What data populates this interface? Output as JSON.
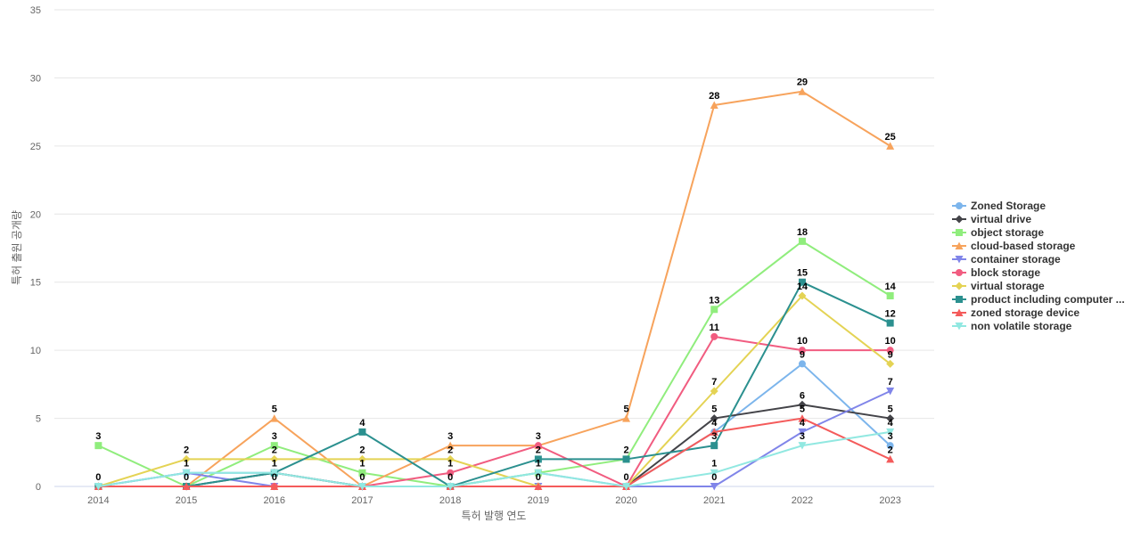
{
  "chart_data": {
    "type": "line",
    "title": "",
    "xlabel": "특허 발행 연도",
    "ylabel": "특허 출원 공개량",
    "ylim": [
      0,
      35
    ],
    "yticks": [
      0,
      5,
      10,
      15,
      20,
      25,
      30,
      35
    ],
    "grid": true,
    "legend_position": "right",
    "categories": [
      "2014",
      "2015",
      "2016",
      "2017",
      "2018",
      "2019",
      "2020",
      "2021",
      "2022",
      "2023"
    ],
    "series": [
      {
        "name": "Zoned Storage",
        "legend_label": "Zoned Storage",
        "color": "#7cb5ec",
        "marker": "circle",
        "values": [
          0,
          1,
          1,
          0,
          0,
          1,
          0,
          4,
          9,
          3
        ]
      },
      {
        "name": "virtual drive",
        "legend_label": "virtual drive",
        "color": "#434348",
        "marker": "diamond",
        "values": [
          0,
          0,
          1,
          0,
          0,
          0,
          0,
          5,
          6,
          5
        ]
      },
      {
        "name": "object storage",
        "legend_label": "object storage",
        "color": "#90ed7d",
        "marker": "square",
        "values": [
          3,
          0,
          3,
          1,
          0,
          1,
          2,
          13,
          18,
          14
        ]
      },
      {
        "name": "cloud-based storage",
        "legend_label": "cloud-based storage",
        "color": "#f7a35c",
        "marker": "triangle",
        "values": [
          0,
          0,
          5,
          0,
          3,
          3,
          5,
          28,
          29,
          25
        ]
      },
      {
        "name": "container storage",
        "legend_label": "container storage",
        "color": "#8085e9",
        "marker": "triangle-down",
        "values": [
          0,
          1,
          0,
          0,
          0,
          0,
          0,
          0,
          4,
          7
        ]
      },
      {
        "name": "block storage",
        "legend_label": "block storage",
        "color": "#f15c80",
        "marker": "circle",
        "values": [
          0,
          0,
          0,
          0,
          1,
          3,
          0,
          11,
          10,
          10
        ]
      },
      {
        "name": "virtual storage",
        "legend_label": "virtual storage",
        "color": "#e4d354",
        "marker": "diamond",
        "values": [
          0,
          2,
          2,
          2,
          2,
          0,
          0,
          7,
          14,
          9
        ]
      },
      {
        "name": "product including computer readable storage medium",
        "legend_label": "product including computer ...",
        "color": "#2b908f",
        "marker": "square",
        "values": [
          0,
          0,
          1,
          4,
          0,
          2,
          2,
          3,
          15,
          12
        ]
      },
      {
        "name": "zoned storage device",
        "legend_label": "zoned storage device",
        "color": "#f45b5b",
        "marker": "triangle",
        "values": [
          0,
          0,
          0,
          0,
          0,
          0,
          0,
          4,
          5,
          2
        ]
      },
      {
        "name": "non volatile storage",
        "legend_label": "non volatile storage",
        "color": "#91e8e1",
        "marker": "triangle-down",
        "values": [
          0,
          1,
          1,
          0,
          0,
          1,
          0,
          1,
          3,
          4
        ]
      }
    ],
    "data_labels": [
      {
        "category": "2014",
        "values": [
          3,
          0
        ]
      },
      {
        "category": "2015",
        "values": [
          2,
          1,
          0
        ]
      },
      {
        "category": "2016",
        "values": [
          5,
          3,
          2,
          1,
          0
        ]
      },
      {
        "category": "2017",
        "values": [
          4,
          2,
          1,
          0
        ]
      },
      {
        "category": "2018",
        "values": [
          3,
          2,
          1,
          0
        ]
      },
      {
        "category": "2019",
        "values": [
          3,
          2,
          1,
          0
        ]
      },
      {
        "category": "2020",
        "values": [
          5,
          2,
          0
        ]
      },
      {
        "category": "2021",
        "values": [
          28,
          13,
          11,
          7,
          5,
          4,
          3,
          1,
          0
        ]
      },
      {
        "category": "2022",
        "values": [
          29,
          18,
          15,
          14,
          10,
          9,
          6,
          5,
          4,
          3
        ]
      },
      {
        "category": "2023",
        "values": [
          25,
          14,
          12,
          10,
          9,
          7,
          5,
          4,
          3,
          2
        ]
      }
    ]
  }
}
